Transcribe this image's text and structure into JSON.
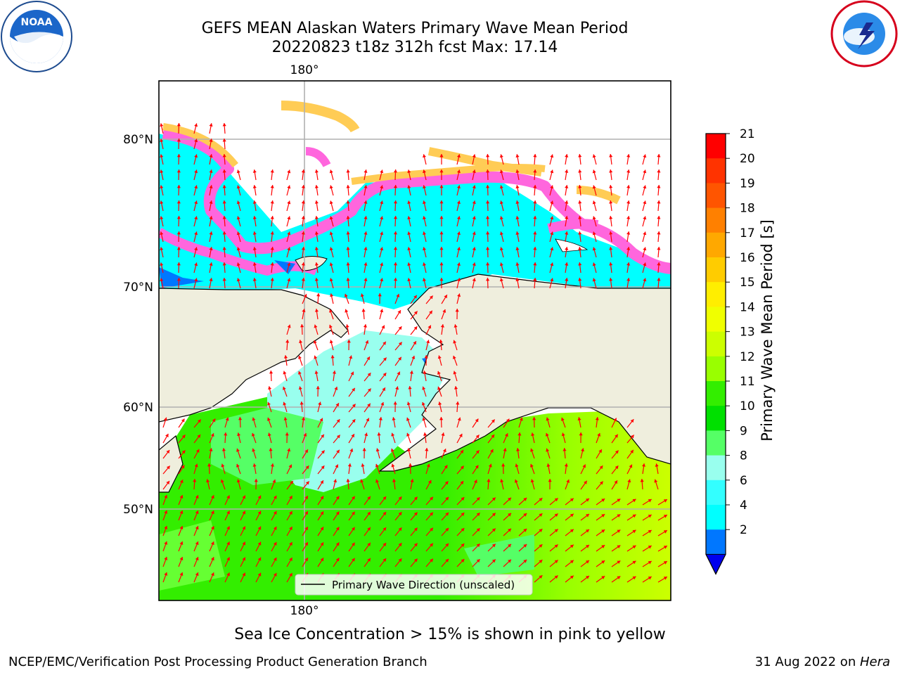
{
  "header": {
    "title_line1": "GEFS MEAN Alaskan Waters Primary Wave Mean Period",
    "title_line2": "20220823 t18z 312h fcst   Max: 17.14"
  },
  "logos": {
    "left": {
      "name": "noaa-logo",
      "text": "NOAA",
      "ring_text": "NATIONAL OCEANIC AND ATMOSPHERIC ADMINISTRATION · U.S. DEPARTMENT OF COMMERCE"
    },
    "right": {
      "name": "nws-logo",
      "ring_text": "NATIONAL WEATHER SERVICE"
    }
  },
  "map": {
    "lon_label_top": "180°",
    "lon_label_bottom": "180°",
    "lat_labels": [
      "80°N",
      "70°N",
      "60°N",
      "50°N"
    ],
    "legend_label": "Primary Wave Direction (unscaled)",
    "colors": {
      "land": "#efeedd",
      "arrow": "#ff0000",
      "grid": "#b0b0b0"
    }
  },
  "colorbar": {
    "label": "Primary Wave Mean Period [s]",
    "ticks": [
      "21",
      "20",
      "19",
      "18",
      "17",
      "16",
      "15",
      "14",
      "13",
      "12",
      "11",
      "10",
      "9",
      "8",
      "6",
      "4",
      "2"
    ],
    "colors": [
      "#ff0000",
      "#ff3300",
      "#ff5500",
      "#ff8000",
      "#ffa800",
      "#ffcc00",
      "#ffee00",
      "#f0ff00",
      "#ccff00",
      "#99ff00",
      "#33ee00",
      "#00e000",
      "#55ff66",
      "#99ffee",
      "#33ffff",
      "#00ffff",
      "#0077ff"
    ],
    "extend_color": "#0000ee"
  },
  "footer": {
    "note": "Sea Ice Concentration > 15% is shown in pink to yellow",
    "credit": "NCEP/EMC/Verification Post Processing Product Generation Branch",
    "date": "31 Aug 2022 on ",
    "host": "Hera"
  }
}
